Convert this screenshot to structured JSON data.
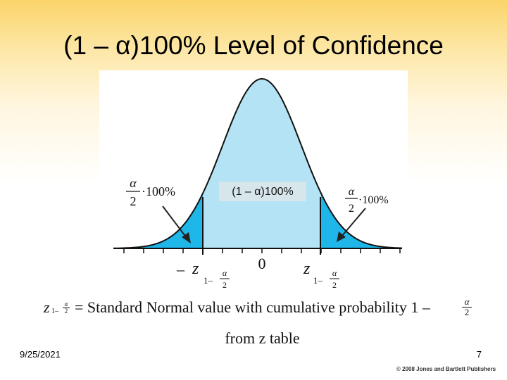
{
  "title": "(1 – α)100% Level of Confidence",
  "diagram": {
    "center_label": "(1 – α)100%",
    "tail_fraction_num": "α",
    "tail_fraction_den": "2",
    "tail_suffix": "·100%",
    "zero_label": "0",
    "neg_sign": "–",
    "z_letter": "z",
    "z_subscript_prefix": "1–",
    "z_sub_num": "α",
    "z_sub_den": "2"
  },
  "formula": {
    "lhs_letter": "z",
    "lhs_sub_prefix": "1–",
    "lhs_sub_num": "α",
    "lhs_sub_den": "2",
    "text": "= Standard Normal value with cumulative probability 1 –",
    "rhs_num": "α",
    "rhs_den": "2"
  },
  "from_table": "from z table",
  "footer": {
    "date": "9/25/2021",
    "page": "7",
    "copyright": "© 2008 Jones and Bartlett Publishers"
  },
  "colors": {
    "center_fill": "#b3e3f5",
    "tail_fill": "#1fb6ea",
    "curve": "#111111"
  }
}
